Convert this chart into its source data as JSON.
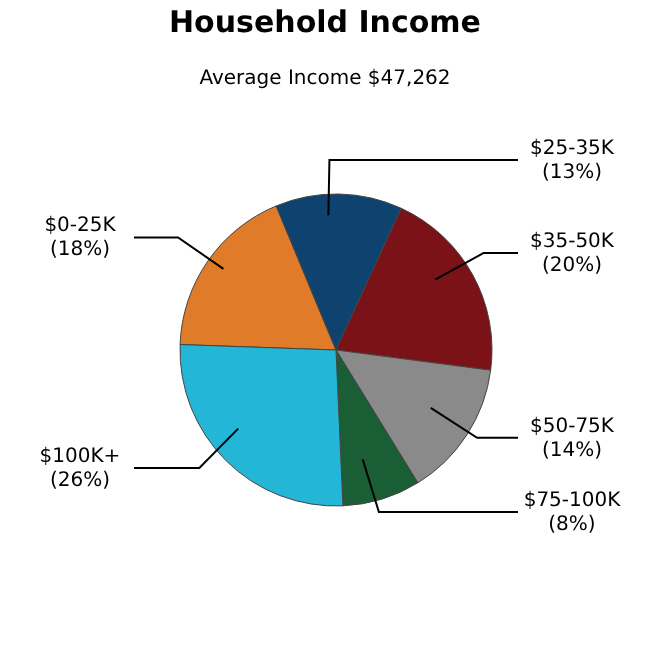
{
  "chart_data": {
    "type": "pie",
    "title": "Household Income",
    "subtitle": "Average Income  $47,262",
    "categories": [
      "$0-25K",
      "$25-35K",
      "$35-50K",
      "$50-75K",
      "$75-100K",
      "$100K+"
    ],
    "values": [
      18,
      13,
      20,
      14,
      8,
      26
    ],
    "colors": [
      "#e07b2a",
      "#0f436f",
      "#7a1218",
      "#8a8a8a",
      "#1a5e36",
      "#24b6d6"
    ],
    "value_labels": [
      "(18%)",
      "(13%)",
      "(20%)",
      "(14%)",
      "(8%)",
      "(26%)"
    ]
  }
}
